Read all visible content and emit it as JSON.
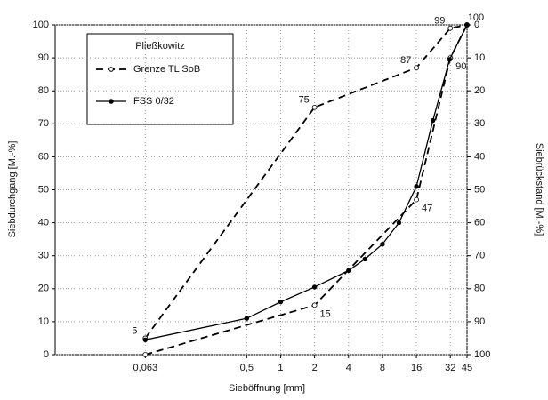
{
  "chart_data": {
    "type": "line",
    "log_x": true,
    "xlabel": "Sieböffnung   [mm]",
    "ylabel": "Siebdurchgang  [M.-%]",
    "y2label": "Siebrückstand  [M.-%]",
    "xlim": [
      0.01,
      45
    ],
    "ylim": [
      0,
      100
    ],
    "y2lim": [
      100,
      0
    ],
    "xticks": [
      {
        "value": 0.063,
        "label": "0,063"
      },
      {
        "value": 0.5,
        "label": "0,5"
      },
      1,
      2,
      4,
      8,
      16,
      32,
      45
    ],
    "yticks": [
      0,
      10,
      20,
      30,
      40,
      50,
      60,
      70,
      80,
      90,
      100
    ],
    "y2ticks": [
      0,
      10,
      20,
      30,
      40,
      50,
      60,
      70,
      80,
      90,
      100
    ],
    "grid": true,
    "legend_title": "Pließkowitz",
    "series": [
      {
        "name": "Grenze TL SoB",
        "color": "#000000",
        "dash": true,
        "marker": "open",
        "x": [
          0.063,
          2,
          16,
          32,
          45
        ],
        "values": [
          5,
          75,
          87,
          99,
          100
        ],
        "value_labels": [
          "5",
          "75",
          "87",
          "99",
          "100"
        ]
      },
      {
        "color": "#000000",
        "dash": true,
        "marker": "open",
        "x": [
          0.063,
          2,
          16,
          32,
          45
        ],
        "values": [
          0,
          15,
          47,
          90,
          100
        ],
        "value_labels": [
          null,
          "15",
          "47",
          "90",
          null
        ]
      },
      {
        "name": "FSS 0/32",
        "color": "#000000",
        "dash": false,
        "marker": "filled",
        "x": [
          0.063,
          0.5,
          1,
          2,
          4,
          5.6,
          8,
          11.2,
          16,
          22.4,
          31.5,
          45
        ],
        "values": [
          4.5,
          11,
          16,
          20.5,
          25.5,
          29,
          33.5,
          40,
          51,
          71,
          89.5,
          100
        ]
      }
    ]
  }
}
